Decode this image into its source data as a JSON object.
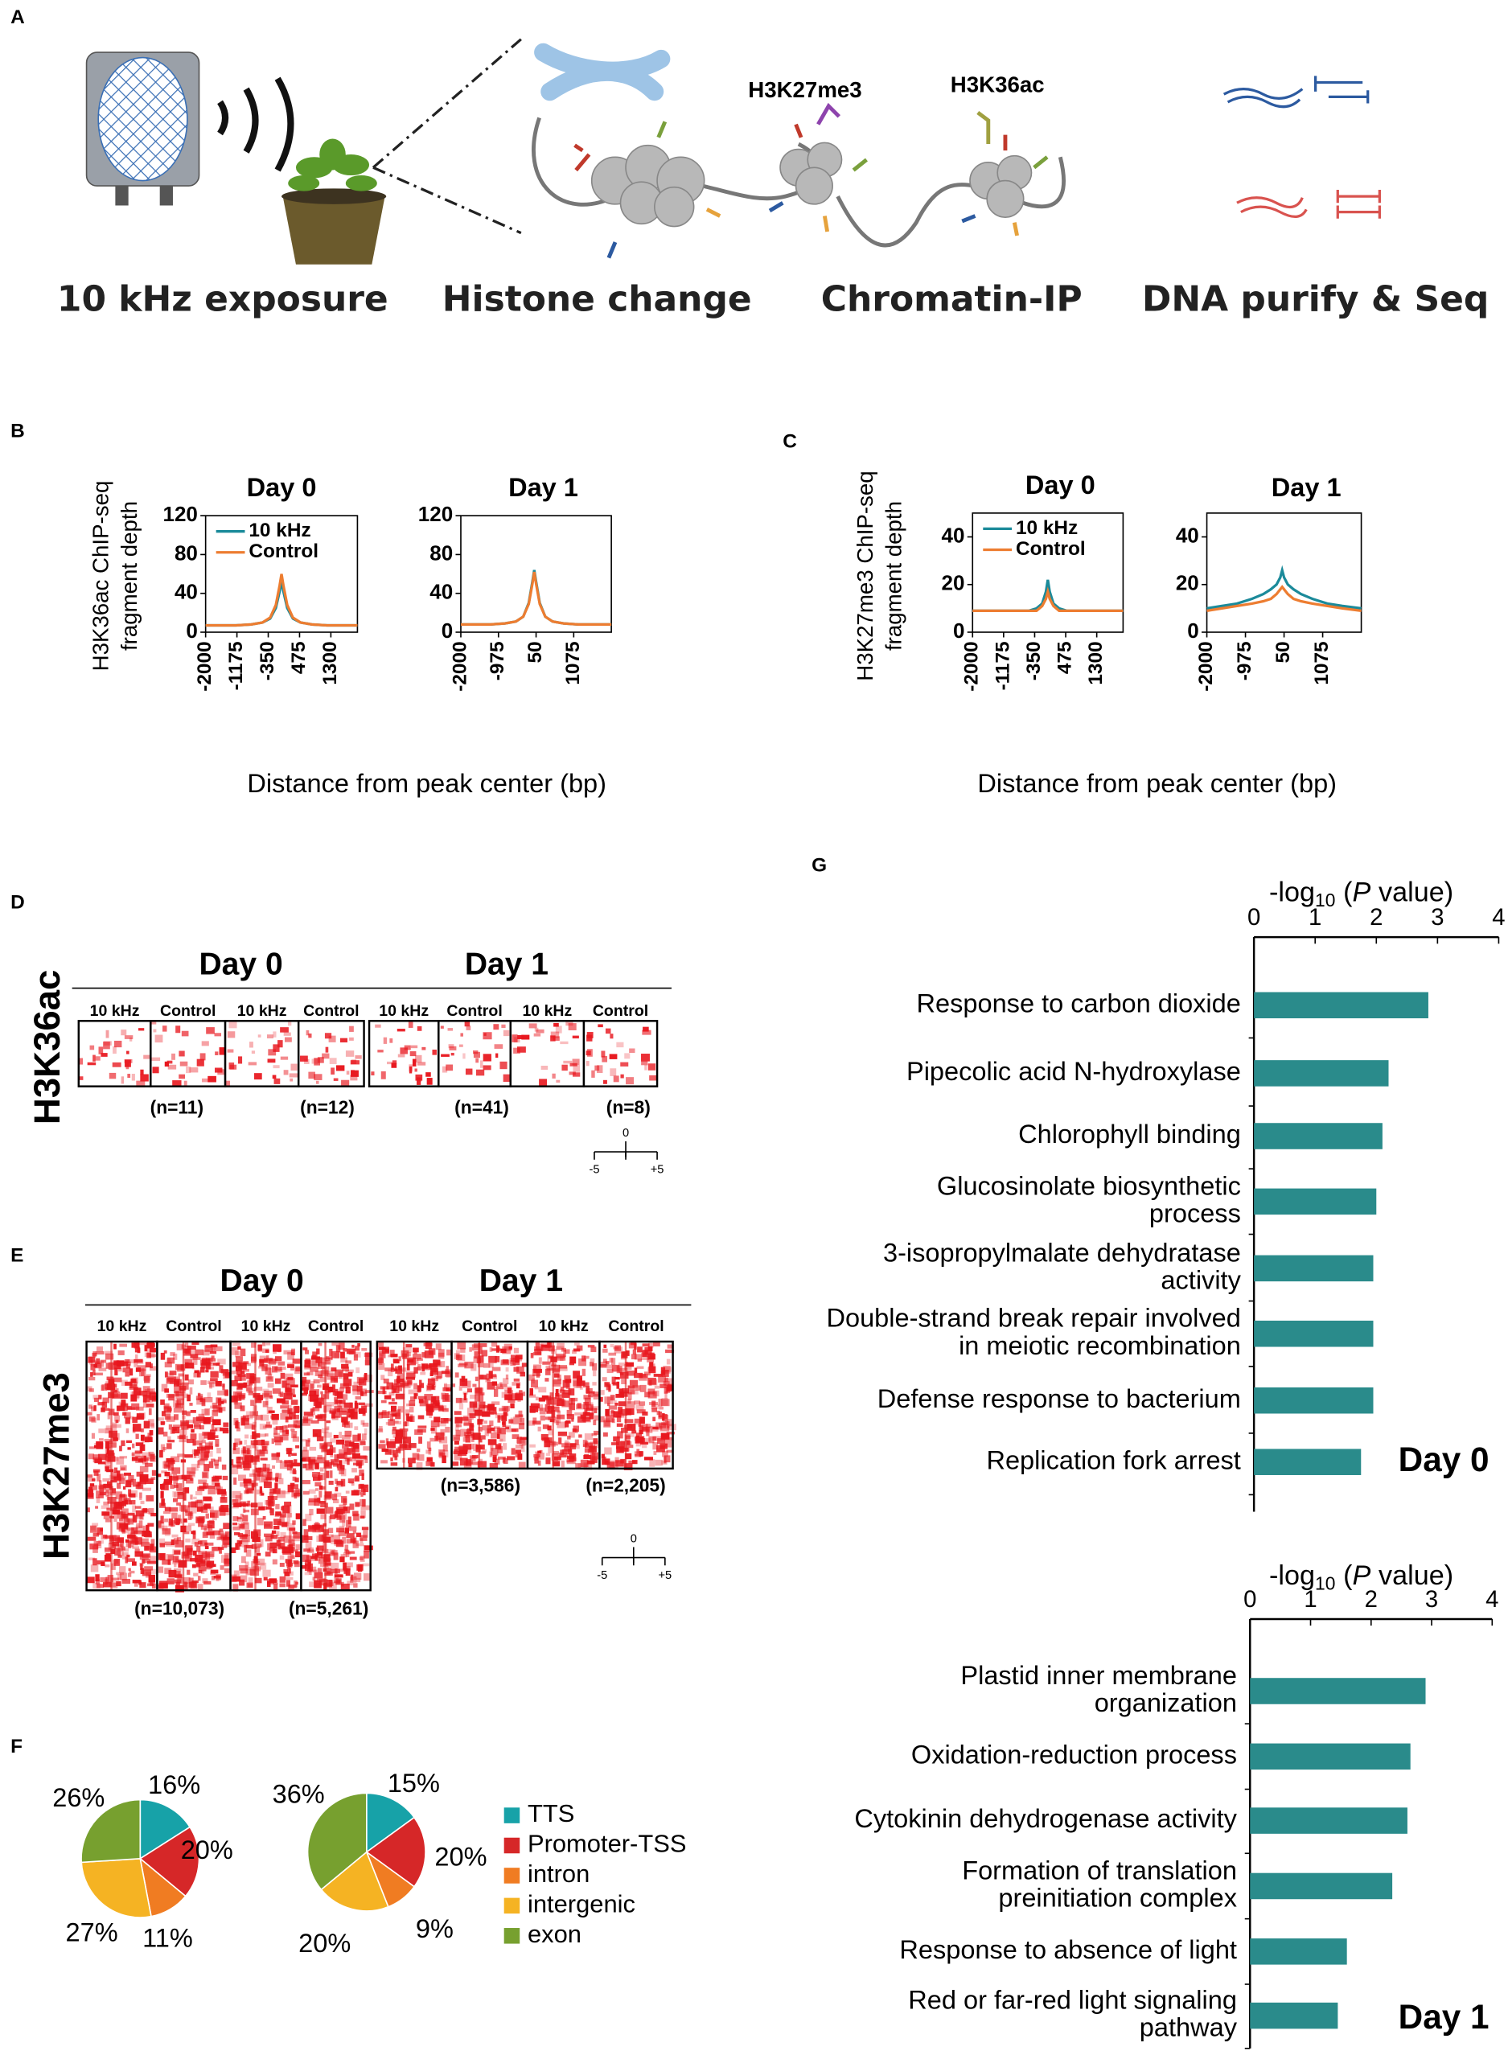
{
  "panel_letters": [
    "A",
    "B",
    "C",
    "D",
    "E",
    "F",
    "G"
  ],
  "panel_a": {
    "steps": [
      "10 kHz exposure",
      "Histone change",
      "Chromatin-IP",
      "DNA purify & Seq"
    ],
    "marks": [
      "H3K27me3",
      "H3K36ac"
    ]
  },
  "chart_data": [
    {
      "type": "line",
      "title": "Day 0",
      "x_label": "Distance from peak center (bp)",
      "y_label": [
        "H3K36ac  ChIP-seq",
        "fragment depth"
      ],
      "x": [
        -2000,
        -1600,
        -1200,
        -800,
        -500,
        -300,
        -150,
        -50,
        0,
        50,
        150,
        300,
        500,
        800,
        1200,
        1600,
        2000
      ],
      "xlim": [
        -2000,
        2000
      ],
      "xticks": [
        -2000,
        -1175,
        -350,
        475,
        1300
      ],
      "ylim": [
        0,
        120
      ],
      "yticks": [
        0,
        40,
        80,
        120
      ],
      "legend": "upper center",
      "series": [
        {
          "name": "10 kHz",
          "color": "#1b8a9a",
          "values": [
            7,
            7,
            7,
            8,
            10,
            14,
            25,
            42,
            52,
            42,
            25,
            14,
            10,
            8,
            7,
            7,
            7
          ]
        },
        {
          "name": "Control",
          "color": "#ed7d31",
          "values": [
            7,
            7,
            7,
            8,
            10,
            15,
            28,
            48,
            60,
            48,
            28,
            15,
            10,
            8,
            7,
            7,
            7
          ]
        }
      ]
    },
    {
      "type": "line",
      "title": "Day 1",
      "x": [
        -2000,
        -1600,
        -1200,
        -800,
        -500,
        -300,
        -150,
        -50,
        0,
        50,
        150,
        300,
        500,
        800,
        1200,
        1600,
        2100
      ],
      "xlim": [
        -2000,
        2100
      ],
      "xticks": [
        -2000,
        -975,
        50,
        1075
      ],
      "ylim": [
        0,
        120
      ],
      "yticks": [
        0,
        40,
        80,
        120
      ],
      "series": [
        {
          "color": "#1b8a9a",
          "values": [
            8,
            8,
            8,
            9,
            11,
            16,
            30,
            52,
            64,
            52,
            30,
            16,
            11,
            9,
            8,
            8,
            8
          ]
        },
        {
          "color": "#ed7d31",
          "values": [
            8,
            8,
            8,
            9,
            11,
            16,
            29,
            50,
            62,
            50,
            29,
            16,
            11,
            9,
            8,
            8,
            8
          ]
        }
      ]
    },
    {
      "type": "line",
      "title": "Day 0",
      "x_label": "Distance from peak center (bp)",
      "y_label": [
        "H3K27me3  ChIP-seq",
        "fragment depth"
      ],
      "x": [
        -2000,
        -1600,
        -1200,
        -800,
        -500,
        -300,
        -150,
        -50,
        0,
        50,
        150,
        300,
        500,
        800,
        1200,
        1600,
        2000
      ],
      "xlim": [
        -2000,
        2000
      ],
      "xticks": [
        -2000,
        -1175,
        -350,
        475,
        1300
      ],
      "ylim": [
        0,
        50
      ],
      "yticks": [
        0,
        20,
        40
      ],
      "legend": "upper center",
      "series": [
        {
          "name": "10 kHz",
          "color": "#1b8a9a",
          "values": [
            9,
            9,
            9,
            9,
            9,
            10,
            12,
            17,
            22,
            17,
            12,
            10,
            9,
            9,
            9,
            9,
            9
          ]
        },
        {
          "name": "Control",
          "color": "#ed7d31",
          "values": [
            9,
            9,
            9,
            9,
            9,
            9,
            11,
            14,
            17,
            14,
            11,
            9,
            9,
            9,
            9,
            9,
            9
          ]
        }
      ]
    },
    {
      "type": "line",
      "title": "Day 1",
      "x": [
        -2000,
        -1600,
        -1200,
        -800,
        -500,
        -300,
        -150,
        -50,
        0,
        50,
        150,
        300,
        500,
        800,
        1200,
        1600,
        2100
      ],
      "xlim": [
        -2000,
        2100
      ],
      "xticks": [
        -2000,
        -975,
        50,
        1075
      ],
      "ylim": [
        0,
        50
      ],
      "yticks": [
        0,
        20,
        40
      ],
      "series": [
        {
          "color": "#1b8a9a",
          "values": [
            10,
            11,
            12,
            14,
            16,
            18,
            20,
            23,
            26,
            23,
            20,
            18,
            16,
            14,
            12,
            11,
            10
          ]
        },
        {
          "color": "#ed7d31",
          "values": [
            9,
            10,
            11,
            12,
            13,
            14,
            16,
            18,
            19,
            18,
            16,
            14,
            13,
            12,
            11,
            10,
            9
          ]
        }
      ]
    },
    {
      "type": "pie",
      "categories": [
        "TTS",
        "Promoter-TSS",
        "intron",
        "intergenic",
        "exon"
      ],
      "colors": [
        "#17a2a8",
        "#d62728",
        "#f07c22",
        "#f5b323",
        "#77a02f"
      ],
      "pies": [
        {
          "values": [
            16,
            20,
            11,
            27,
            26
          ],
          "value_labels": [
            "16%",
            "20%",
            "11%",
            "27%",
            "26%"
          ]
        },
        {
          "values": [
            15,
            20,
            9,
            20,
            36
          ],
          "value_labels": [
            "15%",
            "20%",
            "9%",
            "20%",
            "36%"
          ]
        }
      ]
    },
    {
      "type": "hbar",
      "x_label": [
        "-log",
        "10",
        "(",
        "P",
        "value)"
      ],
      "annotation": "Day 0",
      "color": "#2a8b8b",
      "xlim": [
        0,
        4
      ],
      "xticks": [
        0,
        1,
        2,
        3,
        4
      ],
      "categories": [
        [
          "Response to carbon dioxide"
        ],
        [
          "Pipecolic acid N-hydroxylase"
        ],
        [
          "Chlorophyll binding"
        ],
        [
          "Glucosinolate biosynthetic",
          "process"
        ],
        [
          "3-isopropylmalate dehydratase",
          "activity"
        ],
        [
          "Double-strand  break repair involved",
          "in meiotic recombination"
        ],
        [
          "Defense response to bacterium"
        ],
        [
          "Replication fork arrest"
        ]
      ],
      "values": [
        2.85,
        2.2,
        2.1,
        2.0,
        1.95,
        1.95,
        1.95,
        1.75
      ]
    },
    {
      "type": "hbar",
      "x_label": [
        "-log",
        "10",
        "(",
        "P",
        "value)"
      ],
      "annotation": "Day 1",
      "color": "#2a8b8b",
      "xlim": [
        0,
        4
      ],
      "xticks": [
        0,
        1,
        2,
        3,
        4
      ],
      "categories": [
        [
          "Plastid inner membrane",
          "organization"
        ],
        [
          "Oxidation-reduction process"
        ],
        [
          "Cytokinin dehydrogenase activity"
        ],
        [
          "Formation of translation",
          "preinitiation complex"
        ],
        [
          "Response to absence of light"
        ],
        [
          "Red or far-red light signaling",
          "pathway"
        ]
      ],
      "values": [
        2.9,
        2.65,
        2.6,
        2.35,
        1.6,
        1.45
      ]
    }
  ],
  "heatmaps": [
    {
      "ylabel": "H3K36ac",
      "days": [
        "Day 0",
        "Day 1"
      ],
      "columns": [
        "10 kHz",
        "Control",
        "10 kHz",
        "Control",
        "10 kHz",
        "Control",
        "10 kHz",
        "Control"
      ],
      "counts": [
        "(n=11)",
        "(n=12)",
        "(n=41)",
        "(n=8)"
      ],
      "scale_ticks": [
        -5,
        0,
        {
          "value": 5,
          "label": "+5"
        }
      ]
    },
    {
      "ylabel": "H3K27me3",
      "days": [
        "Day 0",
        "Day 1"
      ],
      "columns": [
        "10 kHz",
        "Control",
        "10 kHz",
        "Control",
        "10 kHz",
        "Control",
        "10 kHz",
        "Control"
      ],
      "counts": [
        "(n=10,073)",
        "(n=5,261)",
        "(n=3,586)",
        "(n=2,205)"
      ],
      "scale_ticks": [
        -5,
        0,
        {
          "value": 5,
          "label": "+5"
        }
      ]
    }
  ]
}
